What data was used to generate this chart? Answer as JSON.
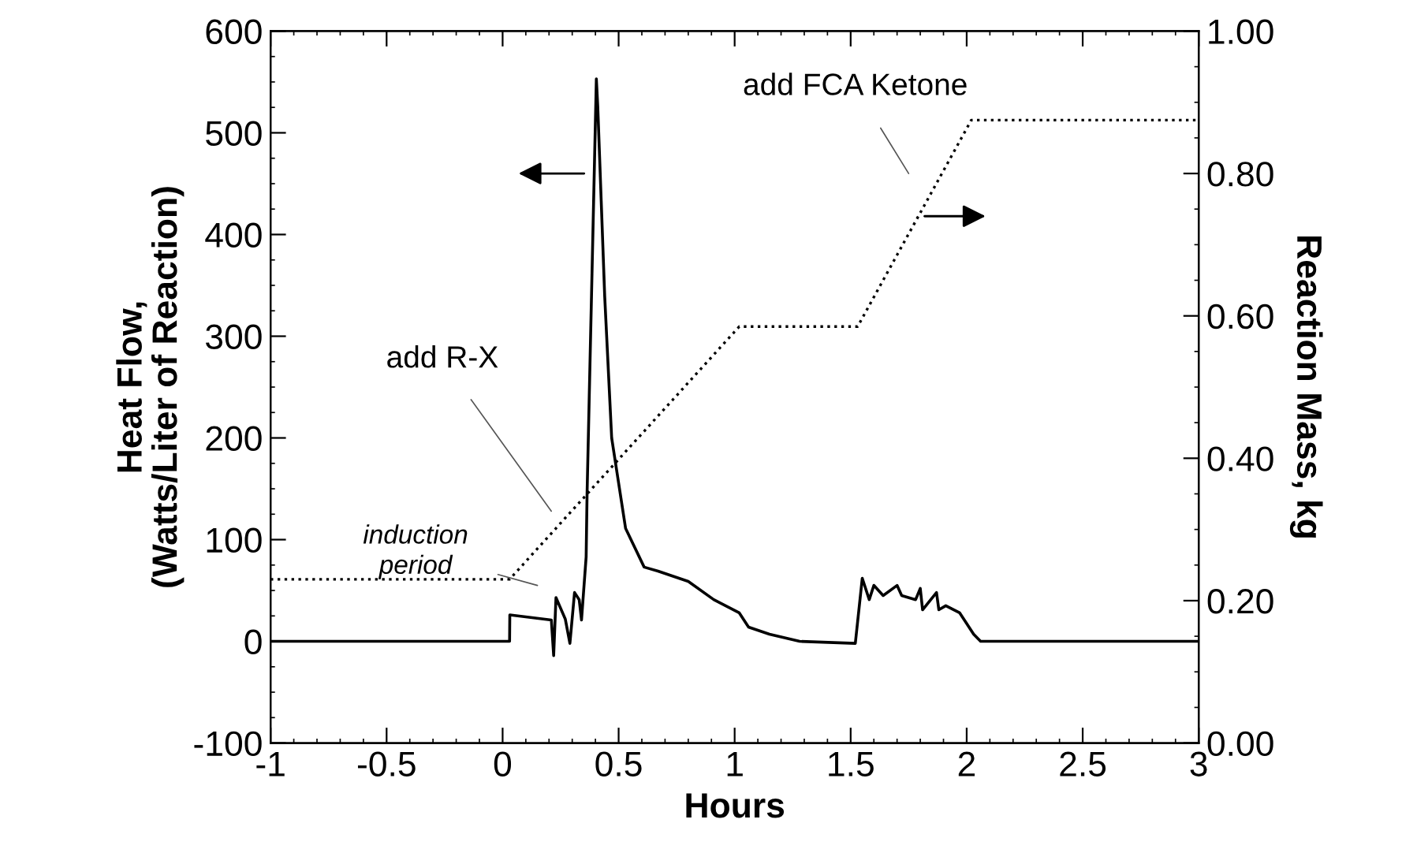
{
  "chart_data": {
    "type": "line",
    "xlabel": "Hours",
    "ylabel": "Heat Flow,\n(Watts/Liter of Reaction)",
    "y2label": "Reaction Mass, kg",
    "xlim": [
      -1,
      3
    ],
    "xticks": [
      -1,
      {
        "value": -0.5,
        "label": "-0.5"
      },
      0,
      0.5,
      1,
      1.5,
      2,
      2.5,
      3
    ],
    "ylim": [
      -100,
      600
    ],
    "yticks": [
      -100,
      0,
      100,
      200,
      300,
      400,
      500,
      600
    ],
    "y2lim": [
      0,
      1
    ],
    "y2ticks": [
      {
        "value": 0,
        "label": "0.00"
      },
      {
        "value": 0.2,
        "label": "0.20"
      },
      {
        "value": 0.4,
        "label": "0.40"
      },
      {
        "value": 0.6,
        "label": "0.60"
      },
      {
        "value": 0.8,
        "label": "0.80"
      },
      {
        "value": 1,
        "label": "1.00"
      }
    ],
    "grid": false,
    "legend": false,
    "series": [
      {
        "color": "#000000",
        "line_style": "solid",
        "x": [
          -1,
          0.03,
          0.031,
          0.21,
          0.22,
          0.23,
          0.27,
          0.29,
          0.31,
          0.33,
          0.34,
          0.36,
          0.364,
          0.404,
          0.41,
          0.44,
          0.47,
          0.53,
          0.61,
          0.67,
          0.8,
          0.91,
          1.02,
          1.06,
          1.15,
          1.28,
          1.52,
          1.55,
          1.58,
          1.6,
          1.64,
          1.7,
          1.72,
          1.78,
          1.8,
          1.81,
          1.87,
          1.88,
          1.91,
          1.97,
          2.03,
          2.06,
          3
        ],
        "values": [
          0,
          0,
          26,
          21,
          -14,
          43,
          22,
          -2,
          48,
          41,
          21,
          83,
          145,
          553,
          526,
          339,
          200,
          111,
          73,
          69,
          59,
          41,
          28,
          14,
          7,
          0,
          -2,
          62,
          41,
          55,
          45,
          55,
          45,
          41,
          52,
          31,
          48,
          31,
          35,
          28,
          7,
          0,
          0
        ]
      },
      {
        "color": "#000000",
        "line_style": "dotted",
        "axis": "y2",
        "x": [
          -1,
          0.03,
          1.02,
          1.53,
          2.02,
          3
        ],
        "values": [
          0.23,
          0.23,
          0.585,
          0.585,
          0.875,
          0.875
        ]
      }
    ],
    "annotations": [
      "add R-X",
      "induction\nperiod",
      "add FCA Ketone"
    ]
  }
}
